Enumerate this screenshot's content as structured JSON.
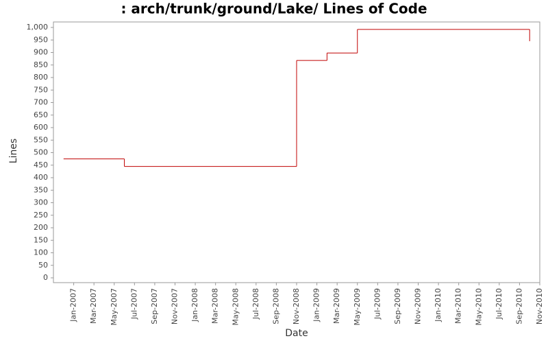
{
  "chart_data": {
    "type": "step",
    "title": ": arch/trunk/ground/Lake/ Lines of Code",
    "x_label": "Date",
    "y_label": "Lines",
    "x": [
      "2006-12",
      "2007-06",
      "2008-11",
      "2009-02",
      "2009-05",
      "2010-10"
    ],
    "values": [
      475,
      445,
      868,
      898,
      992,
      945
    ],
    "color": "#c00000",
    "xlim": [
      "2006-11",
      "2010-11"
    ],
    "xticks": [
      {
        "value": "2007-01",
        "label": "Jan-2007"
      },
      {
        "value": "2007-03",
        "label": "Mar-2007"
      },
      {
        "value": "2007-05",
        "label": "May-2007"
      },
      {
        "value": "2007-07",
        "label": "Jul-2007"
      },
      {
        "value": "2007-09",
        "label": "Sep-2007"
      },
      {
        "value": "2007-11",
        "label": "Nov-2007"
      },
      {
        "value": "2008-01",
        "label": "Jan-2008"
      },
      {
        "value": "2008-03",
        "label": "Mar-2008"
      },
      {
        "value": "2008-05",
        "label": "May-2008"
      },
      {
        "value": "2008-07",
        "label": "Jul-2008"
      },
      {
        "value": "2008-09",
        "label": "Sep-2008"
      },
      {
        "value": "2008-11",
        "label": "Nov-2008"
      },
      {
        "value": "2009-01",
        "label": "Jan-2009"
      },
      {
        "value": "2009-03",
        "label": "Mar-2009"
      },
      {
        "value": "2009-05",
        "label": "May-2009"
      },
      {
        "value": "2009-07",
        "label": "Jul-2009"
      },
      {
        "value": "2009-09",
        "label": "Sep-2009"
      },
      {
        "value": "2009-11",
        "label": "Nov-2009"
      },
      {
        "value": "2010-01",
        "label": "Jan-2010"
      },
      {
        "value": "2010-03",
        "label": "Mar-2010"
      },
      {
        "value": "2010-05",
        "label": "May-2010"
      },
      {
        "value": "2010-07",
        "label": "Jul-2010"
      },
      {
        "value": "2010-09",
        "label": "Sep-2010"
      },
      {
        "value": "2010-11",
        "label": "Nov-2010"
      }
    ],
    "ylim": [
      0,
      1000
    ],
    "yticks": [
      0,
      50,
      100,
      150,
      200,
      250,
      300,
      350,
      400,
      450,
      500,
      550,
      600,
      650,
      700,
      750,
      800,
      850,
      900,
      950,
      {
        "value": 1000,
        "label": "1,000"
      }
    ],
    "grid": false
  }
}
